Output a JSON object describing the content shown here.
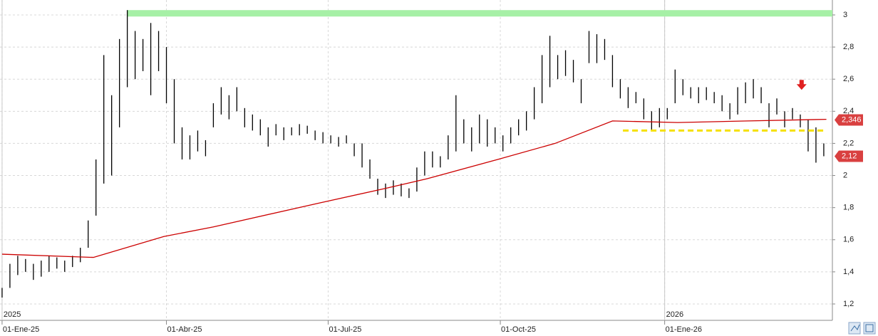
{
  "chart_data": {
    "type": "ohlc",
    "xlim": [
      -0.8,
      318.3
    ],
    "xticks": [
      {
        "value": 0,
        "label": "01-Ene-25"
      },
      {
        "value": 63,
        "label": "01-Abr-25"
      },
      {
        "value": 125,
        "label": "01-Jul-25"
      },
      {
        "value": 191,
        "label": "01-Oct-25"
      },
      {
        "value": 254,
        "label": "01-Ene-26"
      }
    ],
    "year_labels": [
      {
        "value": 0,
        "label": "2025"
      },
      {
        "value": 254,
        "label": "2026"
      }
    ],
    "ylim": [
      1.098,
      3.093
    ],
    "yticks": [
      {
        "value": 1.2,
        "label": "1,2"
      },
      {
        "value": 1.4,
        "label": "1,4"
      },
      {
        "value": 1.6,
        "label": "1,6"
      },
      {
        "value": 1.8,
        "label": "1,8"
      },
      {
        "value": 2,
        "label": "2"
      },
      {
        "value": 2.2,
        "label": "2,2"
      },
      {
        "value": 2.4,
        "label": "2,4"
      },
      {
        "value": 2.6,
        "label": "2,6"
      },
      {
        "value": 2.8,
        "label": "2,8"
      },
      {
        "value": 3,
        "label": "3"
      }
    ],
    "grid": true,
    "bars": {
      "color": "#000000",
      "x": [
        0,
        3,
        6,
        9,
        12,
        15,
        18,
        21,
        24,
        27,
        30,
        33,
        36,
        39,
        42,
        45,
        48,
        51,
        54,
        57,
        60,
        63,
        66,
        69,
        72,
        75,
        78,
        81,
        84,
        87,
        90,
        93,
        96,
        99,
        102,
        105,
        108,
        111,
        114,
        117,
        120,
        123,
        126,
        129,
        132,
        135,
        138,
        141,
        144,
        147,
        150,
        153,
        156,
        159,
        162,
        165,
        168,
        171,
        174,
        177,
        180,
        183,
        186,
        189,
        192,
        195,
        198,
        201,
        204,
        207,
        210,
        213,
        216,
        219,
        222,
        225,
        228,
        231,
        234,
        237,
        240,
        243,
        246,
        249,
        252,
        255,
        258,
        261,
        264,
        267,
        270,
        273,
        276,
        279,
        282,
        285,
        288,
        291,
        294,
        297,
        300,
        303,
        306,
        309,
        312,
        315
      ],
      "high": [
        1.3,
        1.45,
        1.5,
        1.48,
        1.45,
        1.47,
        1.5,
        1.49,
        1.47,
        1.5,
        1.55,
        1.72,
        2.1,
        2.75,
        2.5,
        2.85,
        3.03,
        2.9,
        2.85,
        2.95,
        2.9,
        2.8,
        2.6,
        2.3,
        2.25,
        2.28,
        2.22,
        2.45,
        2.55,
        2.5,
        2.55,
        2.42,
        2.38,
        2.35,
        2.3,
        2.32,
        2.3,
        2.3,
        2.32,
        2.31,
        2.28,
        2.27,
        2.25,
        2.24,
        2.25,
        2.2,
        2.2,
        2.1,
        1.98,
        1.95,
        1.97,
        1.95,
        1.92,
        2.05,
        2.15,
        2.15,
        2.12,
        2.25,
        2.5,
        2.35,
        2.3,
        2.38,
        2.35,
        2.3,
        2.25,
        2.3,
        2.35,
        2.4,
        2.55,
        2.75,
        2.87,
        2.75,
        2.78,
        2.72,
        2.6,
        2.9,
        2.88,
        2.85,
        2.75,
        2.6,
        2.55,
        2.52,
        2.48,
        2.4,
        2.42,
        2.42,
        2.66,
        2.6,
        2.55,
        2.55,
        2.55,
        2.52,
        2.5,
        2.45,
        2.55,
        2.58,
        2.6,
        2.55,
        2.45,
        2.48,
        2.4,
        2.42,
        2.38,
        2.35,
        2.3,
        2.2
      ],
      "low": [
        1.24,
        1.3,
        1.38,
        1.4,
        1.35,
        1.37,
        1.4,
        1.42,
        1.4,
        1.43,
        1.46,
        1.55,
        1.75,
        1.95,
        2.0,
        2.3,
        2.55,
        2.6,
        2.65,
        2.5,
        2.65,
        2.45,
        2.2,
        2.1,
        2.1,
        2.15,
        2.12,
        2.3,
        2.38,
        2.35,
        2.4,
        2.3,
        2.28,
        2.25,
        2.18,
        2.25,
        2.22,
        2.25,
        2.25,
        2.26,
        2.22,
        2.2,
        2.2,
        2.18,
        2.2,
        2.12,
        2.05,
        1.98,
        1.88,
        1.86,
        1.88,
        1.87,
        1.86,
        1.9,
        2.0,
        2.05,
        2.05,
        2.1,
        2.15,
        2.2,
        2.15,
        2.2,
        2.18,
        2.2,
        2.15,
        2.2,
        2.25,
        2.28,
        2.35,
        2.45,
        2.55,
        2.6,
        2.62,
        2.58,
        2.45,
        2.7,
        2.7,
        2.72,
        2.55,
        2.48,
        2.42,
        2.45,
        2.35,
        2.28,
        2.3,
        2.35,
        2.45,
        2.5,
        2.48,
        2.45,
        2.47,
        2.45,
        2.4,
        2.35,
        2.38,
        2.45,
        2.48,
        2.45,
        2.3,
        2.38,
        2.3,
        2.35,
        2.3,
        2.15,
        2.08,
        2.12
      ]
    },
    "moving_average": {
      "color": "#cc0000",
      "x": [
        0,
        35,
        62,
        81,
        122,
        147,
        163,
        190,
        212,
        234,
        259,
        286,
        316
      ],
      "values": [
        1.51,
        1.49,
        1.62,
        1.68,
        1.83,
        1.92,
        1.98,
        2.1,
        2.2,
        2.34,
        2.33,
        2.34,
        2.35
      ]
    },
    "resistance_band": {
      "color": "#a6f0a6",
      "from": 2.99,
      "to": 3.03,
      "x": [
        48,
        318.3
      ]
    },
    "support_line": {
      "color": "#f5e000",
      "value": 2.28,
      "x": [
        238,
        316
      ]
    },
    "signal_arrow": {
      "color": "#e02020",
      "x": 306.5,
      "value": 2.56
    },
    "price_tags": [
      {
        "value": 2.346,
        "label": "2,346"
      },
      {
        "value": 2.12,
        "label": "2,12"
      }
    ],
    "price_tag_color": "#d94040"
  }
}
